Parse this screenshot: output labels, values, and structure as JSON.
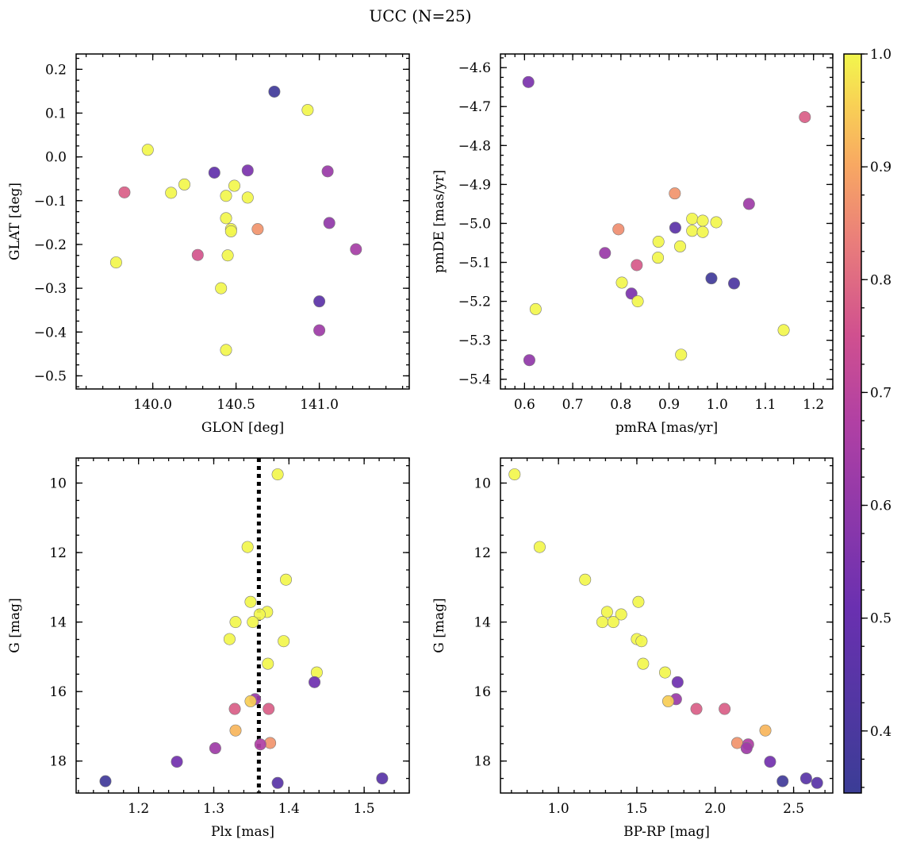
{
  "title": "UCC (N=25)",
  "colorbar": {
    "range": [
      0.345,
      1.0
    ],
    "ticks": [
      0.4,
      0.5,
      0.6,
      0.7,
      0.8,
      0.9,
      1.0
    ],
    "ticklabels": [
      "0.4",
      "0.5",
      "0.6",
      "0.7",
      "0.8",
      "0.9",
      "1.0"
    ],
    "colormap": "plasma"
  },
  "chart_data": [
    {
      "type": "scatter",
      "name": "glon-glat",
      "xlabel": "GLON [deg]",
      "ylabel": "GLAT [deg]",
      "xlim": [
        139.54,
        141.54
      ],
      "ylim": [
        -0.53,
        0.235
      ],
      "xticks": [
        140.0,
        140.5,
        141.0
      ],
      "xticklabels": [
        "140.0",
        "140.5",
        "141.0"
      ],
      "yticks": [
        0.2,
        0.1,
        0.0,
        -0.1,
        -0.2,
        -0.3,
        -0.4,
        -0.5
      ],
      "yticklabels": [
        "0.2",
        "0.1",
        "0.0",
        "−0.1",
        "−0.2",
        "−0.3",
        "−0.4",
        "−0.5"
      ],
      "y_inverted": false,
      "points": [
        {
          "x": 140.73,
          "y": 0.149,
          "c": 0.37
        },
        {
          "x": 140.93,
          "y": 0.107,
          "c": 1.0
        },
        {
          "x": 139.97,
          "y": 0.016,
          "c": 1.0
        },
        {
          "x": 140.37,
          "y": -0.036,
          "c": 0.48
        },
        {
          "x": 140.57,
          "y": -0.031,
          "c": 0.55
        },
        {
          "x": 141.05,
          "y": -0.033,
          "c": 0.62
        },
        {
          "x": 139.83,
          "y": -0.081,
          "c": 0.78
        },
        {
          "x": 140.11,
          "y": -0.082,
          "c": 1.0
        },
        {
          "x": 140.19,
          "y": -0.063,
          "c": 1.0
        },
        {
          "x": 140.44,
          "y": -0.089,
          "c": 1.0
        },
        {
          "x": 140.49,
          "y": -0.066,
          "c": 1.0
        },
        {
          "x": 140.57,
          "y": -0.093,
          "c": 1.0
        },
        {
          "x": 140.44,
          "y": -0.14,
          "c": 1.0
        },
        {
          "x": 140.47,
          "y": -0.165,
          "c": 1.0
        },
        {
          "x": 140.47,
          "y": -0.17,
          "c": 1.0
        },
        {
          "x": 140.63,
          "y": -0.165,
          "c": 0.87
        },
        {
          "x": 141.06,
          "y": -0.151,
          "c": 0.6
        },
        {
          "x": 139.78,
          "y": -0.241,
          "c": 1.0
        },
        {
          "x": 140.27,
          "y": -0.224,
          "c": 0.76
        },
        {
          "x": 140.45,
          "y": -0.225,
          "c": 1.0
        },
        {
          "x": 141.22,
          "y": -0.211,
          "c": 0.65
        },
        {
          "x": 140.41,
          "y": -0.3,
          "c": 1.0
        },
        {
          "x": 141.0,
          "y": -0.33,
          "c": 0.46
        },
        {
          "x": 141.0,
          "y": -0.396,
          "c": 0.63
        },
        {
          "x": 140.44,
          "y": -0.441,
          "c": 1.0
        }
      ]
    },
    {
      "type": "scatter",
      "name": "pmra-pmde",
      "xlabel": "pmRA [mas/yr]",
      "ylabel": "pmDE [mas/yr]",
      "xlim": [
        0.55,
        1.24
      ],
      "ylim": [
        -5.425,
        -4.565
      ],
      "xticks": [
        0.6,
        0.7,
        0.8,
        0.9,
        1.0,
        1.1,
        1.2
      ],
      "xticklabels": [
        "0.6",
        "0.7",
        "0.8",
        "0.9",
        "1.0",
        "1.1",
        "1.2"
      ],
      "yticks": [
        -4.6,
        -4.7,
        -4.8,
        -4.9,
        -5.0,
        -5.1,
        -5.2,
        -5.3,
        -5.4
      ],
      "yticklabels": [
        "−4.6",
        "−4.7",
        "−4.8",
        "−4.9",
        "−5.0",
        "−5.1",
        "−5.2",
        "−5.3",
        "−5.4"
      ],
      "y_inverted": false,
      "points": [
        {
          "x": 0.608,
          "y": -4.637,
          "c": 0.55
        },
        {
          "x": 1.182,
          "y": -4.727,
          "c": 0.78
        },
        {
          "x": 0.912,
          "y": -4.923,
          "c": 0.87
        },
        {
          "x": 1.066,
          "y": -4.95,
          "c": 0.63
        },
        {
          "x": 0.948,
          "y": -4.988,
          "c": 1.0
        },
        {
          "x": 0.97,
          "y": -4.993,
          "c": 1.0
        },
        {
          "x": 0.998,
          "y": -4.997,
          "c": 1.0
        },
        {
          "x": 0.913,
          "y": -5.011,
          "c": 0.46
        },
        {
          "x": 0.795,
          "y": -5.015,
          "c": 0.86
        },
        {
          "x": 0.948,
          "y": -5.019,
          "c": 1.0
        },
        {
          "x": 0.97,
          "y": -5.022,
          "c": 1.0
        },
        {
          "x": 0.878,
          "y": -5.047,
          "c": 1.0
        },
        {
          "x": 0.923,
          "y": -5.059,
          "c": 1.0
        },
        {
          "x": 0.767,
          "y": -5.076,
          "c": 0.62
        },
        {
          "x": 0.877,
          "y": -5.088,
          "c": 1.0
        },
        {
          "x": 0.833,
          "y": -5.107,
          "c": 0.77
        },
        {
          "x": 0.988,
          "y": -5.141,
          "c": 0.37
        },
        {
          "x": 1.035,
          "y": -5.154,
          "c": 0.41
        },
        {
          "x": 0.802,
          "y": -5.152,
          "c": 1.0
        },
        {
          "x": 0.822,
          "y": -5.18,
          "c": 0.55
        },
        {
          "x": 0.835,
          "y": -5.2,
          "c": 1.0
        },
        {
          "x": 0.623,
          "y": -5.22,
          "c": 1.0
        },
        {
          "x": 1.138,
          "y": -5.274,
          "c": 1.0
        },
        {
          "x": 0.925,
          "y": -5.337,
          "c": 1.0
        },
        {
          "x": 0.61,
          "y": -5.351,
          "c": 0.6
        }
      ]
    },
    {
      "type": "scatter",
      "name": "plx-g",
      "xlabel": "Plx [mas]",
      "ylabel": "G [mag]",
      "xlim": [
        1.117,
        1.56
      ],
      "ylim": [
        9.28,
        18.92
      ],
      "xticks": [
        1.2,
        1.3,
        1.4,
        1.5
      ],
      "xticklabels": [
        "1.2",
        "1.3",
        "1.4",
        "1.5"
      ],
      "yticks": [
        10,
        12,
        14,
        16,
        18
      ],
      "yticklabels": [
        "10",
        "12",
        "14",
        "16",
        "18"
      ],
      "y_inverted": true,
      "vline": 1.36,
      "points": [
        {
          "x": 1.385,
          "y": 9.75,
          "c": 1.0
        },
        {
          "x": 1.345,
          "y": 11.84,
          "c": 1.0
        },
        {
          "x": 1.396,
          "y": 12.78,
          "c": 1.0
        },
        {
          "x": 1.349,
          "y": 13.42,
          "c": 1.0
        },
        {
          "x": 1.371,
          "y": 13.71,
          "c": 1.0
        },
        {
          "x": 1.361,
          "y": 13.78,
          "c": 1.0
        },
        {
          "x": 1.329,
          "y": 14.0,
          "c": 1.0
        },
        {
          "x": 1.352,
          "y": 14.0,
          "c": 1.0
        },
        {
          "x": 1.321,
          "y": 14.49,
          "c": 1.0
        },
        {
          "x": 1.393,
          "y": 14.55,
          "c": 1.0
        },
        {
          "x": 1.372,
          "y": 15.2,
          "c": 1.0
        },
        {
          "x": 1.437,
          "y": 15.45,
          "c": 1.0
        },
        {
          "x": 1.434,
          "y": 15.73,
          "c": 0.52
        },
        {
          "x": 1.355,
          "y": 16.22,
          "c": 0.62
        },
        {
          "x": 1.349,
          "y": 16.28,
          "c": 0.95
        },
        {
          "x": 1.328,
          "y": 16.5,
          "c": 0.78
        },
        {
          "x": 1.373,
          "y": 16.5,
          "c": 0.78
        },
        {
          "x": 1.329,
          "y": 17.12,
          "c": 0.92
        },
        {
          "x": 1.375,
          "y": 17.48,
          "c": 0.87
        },
        {
          "x": 1.362,
          "y": 17.52,
          "c": 0.67
        },
        {
          "x": 1.302,
          "y": 17.63,
          "c": 0.63
        },
        {
          "x": 1.251,
          "y": 18.02,
          "c": 0.53
        },
        {
          "x": 1.524,
          "y": 18.5,
          "c": 0.45
        },
        {
          "x": 1.156,
          "y": 18.58,
          "c": 0.37
        },
        {
          "x": 1.385,
          "y": 18.63,
          "c": 0.45
        }
      ]
    },
    {
      "type": "scatter",
      "name": "bprp-g",
      "xlabel": "BP-RP [mag]",
      "ylabel": "G [mag]",
      "xlim": [
        0.63,
        2.75
      ],
      "ylim": [
        9.28,
        18.92
      ],
      "xticks": [
        1.0,
        1.5,
        2.0,
        2.5
      ],
      "xticklabels": [
        "1.0",
        "1.5",
        "2.0",
        "2.5"
      ],
      "yticks": [
        10,
        12,
        14,
        16,
        18
      ],
      "yticklabels": [
        "10",
        "12",
        "14",
        "16",
        "18"
      ],
      "y_inverted": true,
      "points": [
        {
          "x": 0.72,
          "y": 9.75,
          "c": 1.0
        },
        {
          "x": 0.88,
          "y": 11.84,
          "c": 1.0
        },
        {
          "x": 1.17,
          "y": 12.78,
          "c": 1.0
        },
        {
          "x": 1.51,
          "y": 13.42,
          "c": 1.0
        },
        {
          "x": 1.31,
          "y": 13.71,
          "c": 1.0
        },
        {
          "x": 1.4,
          "y": 13.78,
          "c": 1.0
        },
        {
          "x": 1.28,
          "y": 14.0,
          "c": 1.0
        },
        {
          "x": 1.35,
          "y": 14.0,
          "c": 1.0
        },
        {
          "x": 1.5,
          "y": 14.49,
          "c": 1.0
        },
        {
          "x": 1.53,
          "y": 14.55,
          "c": 1.0
        },
        {
          "x": 1.54,
          "y": 15.2,
          "c": 1.0
        },
        {
          "x": 1.68,
          "y": 15.45,
          "c": 1.0
        },
        {
          "x": 1.76,
          "y": 15.73,
          "c": 0.52
        },
        {
          "x": 1.75,
          "y": 16.22,
          "c": 0.62
        },
        {
          "x": 1.7,
          "y": 16.28,
          "c": 0.95
        },
        {
          "x": 1.88,
          "y": 16.5,
          "c": 0.78
        },
        {
          "x": 2.06,
          "y": 16.5,
          "c": 0.78
        },
        {
          "x": 2.32,
          "y": 17.12,
          "c": 0.92
        },
        {
          "x": 2.14,
          "y": 17.48,
          "c": 0.87
        },
        {
          "x": 2.21,
          "y": 17.52,
          "c": 0.67
        },
        {
          "x": 2.2,
          "y": 17.63,
          "c": 0.63
        },
        {
          "x": 2.35,
          "y": 18.02,
          "c": 0.53
        },
        {
          "x": 2.58,
          "y": 18.5,
          "c": 0.45
        },
        {
          "x": 2.43,
          "y": 18.58,
          "c": 0.37
        },
        {
          "x": 2.65,
          "y": 18.63,
          "c": 0.45
        }
      ]
    }
  ]
}
